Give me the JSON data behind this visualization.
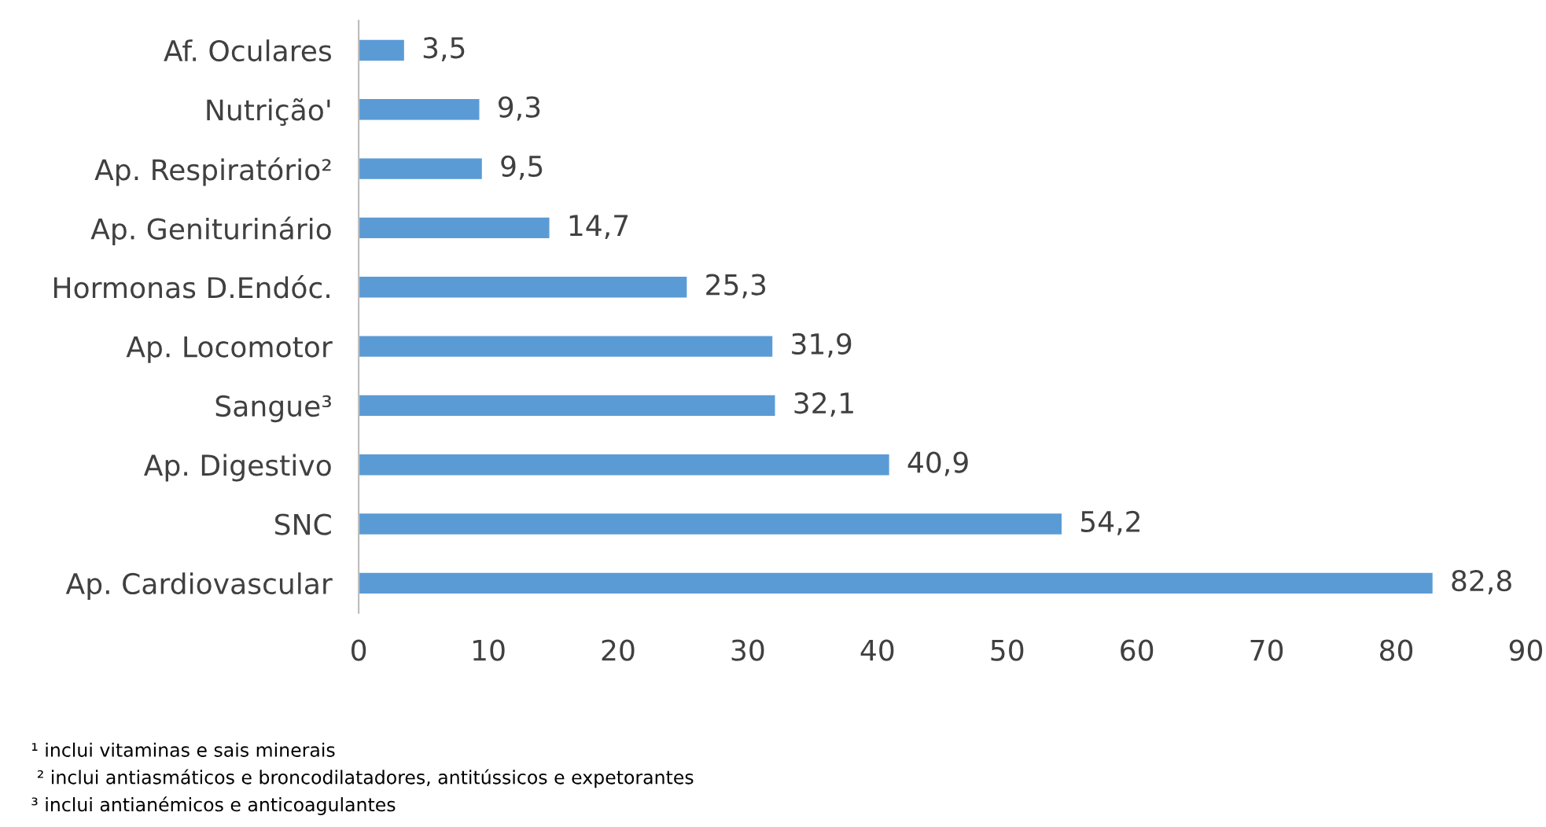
{
  "chart_data": {
    "type": "bar",
    "orientation": "horizontal",
    "categories": [
      "Af. Oculares",
      "Nutrição'",
      "Ap. Respiratório²",
      "Ap. Geniturinário",
      "Hormonas D.Endóc.",
      "Ap. Locomotor",
      "Sangue³",
      "Ap. Digestivo",
      "SNC",
      "Ap. Cardiovascular"
    ],
    "values": [
      3.5,
      9.3,
      9.5,
      14.7,
      25.3,
      31.9,
      32.1,
      40.9,
      54.2,
      82.8
    ],
    "value_labels": [
      "3,5",
      "9,3",
      "9,5",
      "14,7",
      "25,3",
      "31,9",
      "32,1",
      "40,9",
      "54,2",
      "82,8"
    ],
    "color": "#5b9bd5",
    "xlim": [
      0,
      90
    ],
    "xticks": [
      0,
      10,
      20,
      30,
      40,
      50,
      60,
      70,
      80,
      90
    ],
    "grid": false,
    "legend": false,
    "annotations": [
      "¹ inclui vitaminas e sais minerais",
      " ² inclui antiasmáticos e broncodilatadores, antitússicos e expetorantes",
      "³ inclui antianémicos e anticoagulantes"
    ]
  }
}
